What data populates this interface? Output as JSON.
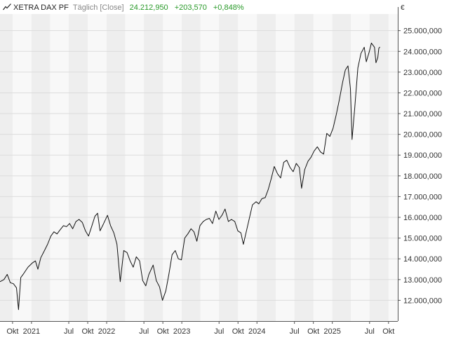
{
  "header": {
    "symbol": "XETRA DAX PF",
    "period": "Täglich [Close]",
    "last": "24.212,950",
    "change": "+203,570",
    "change_pct": "+0,848%",
    "up_color": "#2a9a2a"
  },
  "icon": "line-chart-icon",
  "chart_data": {
    "type": "line",
    "currency_label": "€",
    "x_range": [
      "2020-08-01",
      "2025-11-15"
    ],
    "ylim": [
      11000,
      25800
    ],
    "grid": true,
    "y_ticks": [
      {
        "v": 12000,
        "label": "12.000,000"
      },
      {
        "v": 13000,
        "label": "13.000,000"
      },
      {
        "v": 14000,
        "label": "14.000,000"
      },
      {
        "v": 15000,
        "label": "15.000,000"
      },
      {
        "v": 16000,
        "label": "16.000,000"
      },
      {
        "v": 17000,
        "label": "17.000,000"
      },
      {
        "v": 18000,
        "label": "18.000,000"
      },
      {
        "v": 19000,
        "label": "19.000,000"
      },
      {
        "v": 20000,
        "label": "20.000,000"
      },
      {
        "v": 21000,
        "label": "21.000,000"
      },
      {
        "v": 22000,
        "label": "22.000,000"
      },
      {
        "v": 23000,
        "label": "23.000,000"
      },
      {
        "v": 24000,
        "label": "24.000,000"
      },
      {
        "v": 25000,
        "label": "25.000,000"
      }
    ],
    "x_ticks": [
      {
        "date": "2020-10-01",
        "label": "Okt"
      },
      {
        "date": "2021-01-01",
        "label": "2021"
      },
      {
        "date": "2021-07-01",
        "label": "Jul"
      },
      {
        "date": "2021-10-01",
        "label": "Okt"
      },
      {
        "date": "2022-01-01",
        "label": "2022"
      },
      {
        "date": "2022-07-01",
        "label": "Jul"
      },
      {
        "date": "2022-10-01",
        "label": "Okt"
      },
      {
        "date": "2023-01-01",
        "label": "2023"
      },
      {
        "date": "2023-07-01",
        "label": "Jul"
      },
      {
        "date": "2023-10-01",
        "label": "Okt"
      },
      {
        "date": "2024-01-01",
        "label": "2024"
      },
      {
        "date": "2024-07-01",
        "label": "Jul"
      },
      {
        "date": "2024-10-01",
        "label": "Okt"
      },
      {
        "date": "2025-01-01",
        "label": "2025"
      },
      {
        "date": "2025-07-01",
        "label": "Jul"
      },
      {
        "date": "2025-10-01",
        "label": "Okt"
      }
    ],
    "series": [
      {
        "color": "#111111",
        "points": [
          [
            "2020-08-01",
            12900
          ],
          [
            "2020-08-20",
            13000
          ],
          [
            "2020-09-05",
            13250
          ],
          [
            "2020-09-20",
            12850
          ],
          [
            "2020-10-05",
            12800
          ],
          [
            "2020-10-20",
            12600
          ],
          [
            "2020-10-30",
            11550
          ],
          [
            "2020-11-10",
            13100
          ],
          [
            "2020-11-25",
            13300
          ],
          [
            "2020-12-15",
            13600
          ],
          [
            "2021-01-05",
            13800
          ],
          [
            "2021-01-20",
            13900
          ],
          [
            "2021-02-01",
            13500
          ],
          [
            "2021-02-15",
            14050
          ],
          [
            "2021-03-05",
            14400
          ],
          [
            "2021-03-20",
            14700
          ],
          [
            "2021-04-05",
            15100
          ],
          [
            "2021-04-20",
            15300
          ],
          [
            "2021-05-05",
            15200
          ],
          [
            "2021-05-20",
            15400
          ],
          [
            "2021-06-05",
            15600
          ],
          [
            "2021-06-20",
            15550
          ],
          [
            "2021-07-05",
            15700
          ],
          [
            "2021-07-20",
            15450
          ],
          [
            "2021-08-05",
            15800
          ],
          [
            "2021-08-20",
            15900
          ],
          [
            "2021-09-05",
            15750
          ],
          [
            "2021-09-20",
            15350
          ],
          [
            "2021-10-05",
            15100
          ],
          [
            "2021-10-20",
            15550
          ],
          [
            "2021-11-05",
            16050
          ],
          [
            "2021-11-18",
            16200
          ],
          [
            "2021-11-30",
            15350
          ],
          [
            "2021-12-15",
            15650
          ],
          [
            "2022-01-05",
            16100
          ],
          [
            "2022-01-20",
            15600
          ],
          [
            "2022-02-05",
            15250
          ],
          [
            "2022-02-20",
            14700
          ],
          [
            "2022-03-08",
            12900
          ],
          [
            "2022-03-25",
            14400
          ],
          [
            "2022-04-10",
            14300
          ],
          [
            "2022-04-25",
            13900
          ],
          [
            "2022-05-10",
            13600
          ],
          [
            "2022-05-25",
            14100
          ],
          [
            "2022-06-10",
            13900
          ],
          [
            "2022-06-25",
            12950
          ],
          [
            "2022-07-10",
            12700
          ],
          [
            "2022-07-25",
            13250
          ],
          [
            "2022-08-15",
            13700
          ],
          [
            "2022-08-30",
            12950
          ],
          [
            "2022-09-15",
            12650
          ],
          [
            "2022-09-29",
            12000
          ],
          [
            "2022-10-15",
            12450
          ],
          [
            "2022-10-30",
            13250
          ],
          [
            "2022-11-15",
            14200
          ],
          [
            "2022-11-30",
            14400
          ],
          [
            "2022-12-15",
            14000
          ],
          [
            "2022-12-30",
            13950
          ],
          [
            "2023-01-15",
            15000
          ],
          [
            "2023-01-30",
            15200
          ],
          [
            "2023-02-15",
            15450
          ],
          [
            "2023-03-01",
            15300
          ],
          [
            "2023-03-15",
            14850
          ],
          [
            "2023-03-30",
            15600
          ],
          [
            "2023-04-15",
            15800
          ],
          [
            "2023-04-30",
            15900
          ],
          [
            "2023-05-15",
            15950
          ],
          [
            "2023-05-30",
            15700
          ],
          [
            "2023-06-15",
            16300
          ],
          [
            "2023-06-30",
            15900
          ],
          [
            "2023-07-15",
            16100
          ],
          [
            "2023-07-30",
            16400
          ],
          [
            "2023-08-15",
            15800
          ],
          [
            "2023-08-30",
            15900
          ],
          [
            "2023-09-15",
            15800
          ],
          [
            "2023-09-30",
            15350
          ],
          [
            "2023-10-15",
            15250
          ],
          [
            "2023-10-27",
            14700
          ],
          [
            "2023-11-10",
            15300
          ],
          [
            "2023-11-25",
            15950
          ],
          [
            "2023-12-10",
            16600
          ],
          [
            "2023-12-28",
            16750
          ],
          [
            "2024-01-10",
            16650
          ],
          [
            "2024-01-25",
            16900
          ],
          [
            "2024-02-10",
            16950
          ],
          [
            "2024-02-25",
            17350
          ],
          [
            "2024-03-10",
            17850
          ],
          [
            "2024-03-25",
            18450
          ],
          [
            "2024-04-10",
            18100
          ],
          [
            "2024-04-25",
            17900
          ],
          [
            "2024-05-10",
            18650
          ],
          [
            "2024-05-25",
            18750
          ],
          [
            "2024-06-10",
            18400
          ],
          [
            "2024-06-25",
            18200
          ],
          [
            "2024-07-10",
            18600
          ],
          [
            "2024-07-25",
            18400
          ],
          [
            "2024-08-05",
            17400
          ],
          [
            "2024-08-20",
            18300
          ],
          [
            "2024-09-05",
            18700
          ],
          [
            "2024-09-20",
            18900
          ],
          [
            "2024-10-05",
            19200
          ],
          [
            "2024-10-20",
            19400
          ],
          [
            "2024-11-05",
            19150
          ],
          [
            "2024-11-20",
            19050
          ],
          [
            "2024-12-05",
            20050
          ],
          [
            "2024-12-20",
            19900
          ],
          [
            "2025-01-05",
            20300
          ],
          [
            "2025-01-20",
            20950
          ],
          [
            "2025-02-05",
            21700
          ],
          [
            "2025-02-20",
            22500
          ],
          [
            "2025-03-05",
            23100
          ],
          [
            "2025-03-18",
            23300
          ],
          [
            "2025-03-30",
            22200
          ],
          [
            "2025-04-07",
            19750
          ],
          [
            "2025-04-20",
            21300
          ],
          [
            "2025-05-05",
            23200
          ],
          [
            "2025-05-20",
            23900
          ],
          [
            "2025-06-05",
            24200
          ],
          [
            "2025-06-15",
            23500
          ],
          [
            "2025-06-30",
            24000
          ],
          [
            "2025-07-10",
            24400
          ],
          [
            "2025-07-25",
            24200
          ],
          [
            "2025-08-01",
            23450
          ],
          [
            "2025-08-10",
            23700
          ],
          [
            "2025-08-15",
            24150
          ],
          [
            "2025-08-20",
            24212.95
          ]
        ]
      }
    ]
  }
}
